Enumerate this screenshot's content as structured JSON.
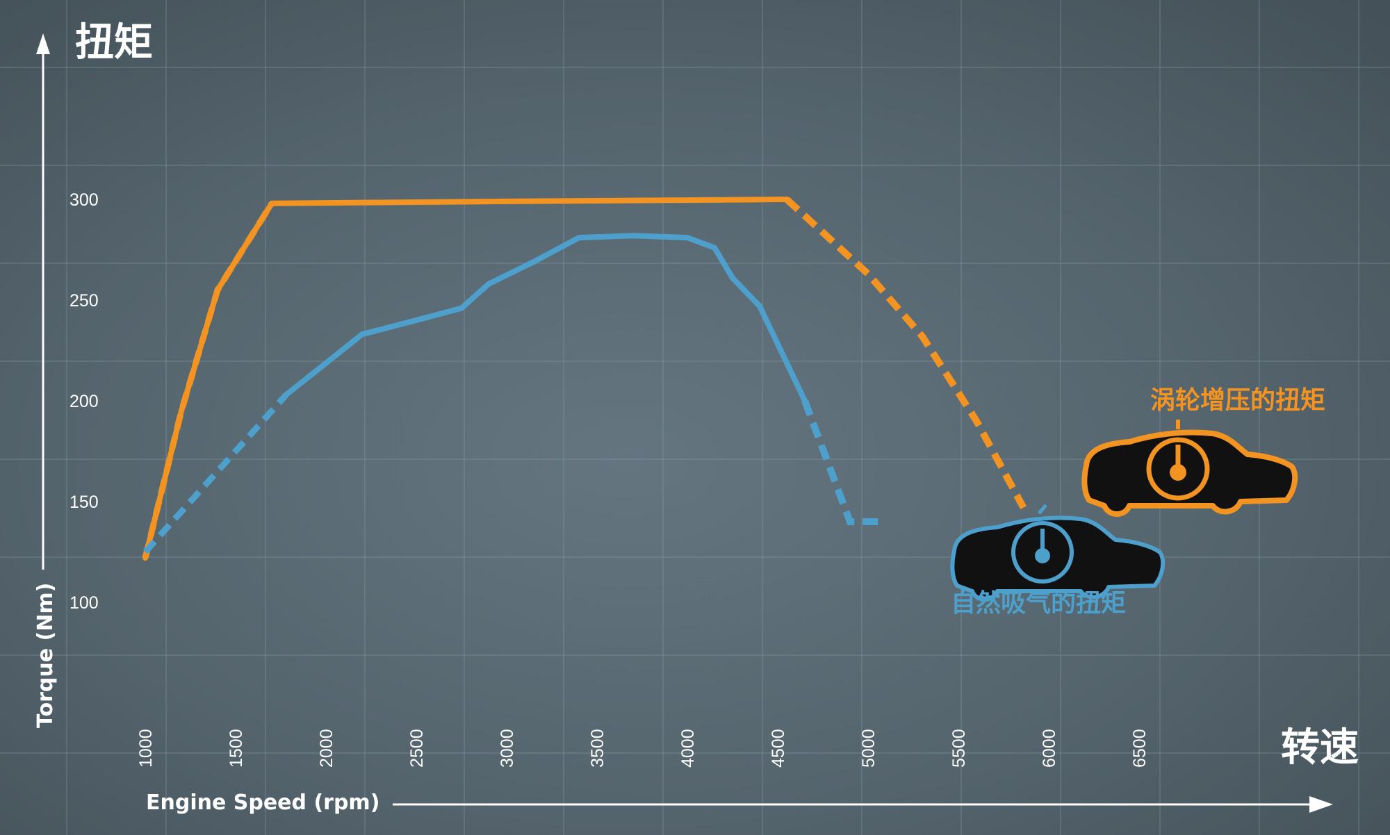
{
  "chart_data": {
    "type": "line",
    "y_axis_title": "扭矩",
    "ylabel": "Torque (Nm)",
    "x_axis_title": "转速",
    "xlabel": "Engine Speed (rpm)",
    "x_ticks": [
      1000,
      1500,
      2000,
      2500,
      3000,
      3500,
      4000,
      4500,
      5000,
      5500,
      6000,
      6500
    ],
    "y_ticks": [
      100,
      150,
      200,
      250,
      300
    ],
    "xlim": [
      750,
      6800
    ],
    "ylim": [
      40,
      390
    ],
    "grid": true,
    "series": [
      {
        "name": "涡轮增压的扭矩",
        "color": "#f39322",
        "points": [
          [
            1000,
            122
          ],
          [
            1200,
            195
          ],
          [
            1400,
            255
          ],
          [
            1700,
            298
          ],
          [
            3000,
            299
          ],
          [
            4550,
            300
          ]
        ],
        "dashed_points": [
          [
            4550,
            300
          ],
          [
            5000,
            263
          ],
          [
            5300,
            232
          ],
          [
            5600,
            190
          ],
          [
            5860,
            147
          ]
        ],
        "dashed_start_points": [
          [
            1000,
            122
          ],
          [
            1200,
            195
          ],
          [
            1400,
            255
          ],
          [
            1700,
            298
          ]
        ]
      },
      {
        "name": "自然吸气的扭矩",
        "color": "#4ea0cc",
        "points": [
          [
            1780,
            203
          ],
          [
            2200,
            233
          ],
          [
            2500,
            240
          ],
          [
            2750,
            246
          ],
          [
            2900,
            258
          ],
          [
            3150,
            269
          ],
          [
            3400,
            281
          ],
          [
            3700,
            282
          ],
          [
            4000,
            281
          ],
          [
            4150,
            276
          ],
          [
            4250,
            261
          ],
          [
            4400,
            247
          ],
          [
            4650,
            200
          ]
        ],
        "dashed_points": [
          [
            4650,
            200
          ],
          [
            4900,
            140
          ],
          [
            5100,
            140
          ]
        ],
        "dashed_start_points": [
          [
            1000,
            125
          ],
          [
            1300,
            155
          ],
          [
            1780,
            203
          ]
        ]
      }
    ],
    "legend": [
      {
        "label": "涡轮增压的扭矩",
        "color": "#f39322"
      },
      {
        "label": "自然吸气的扭矩",
        "color": "#4ea0cc"
      }
    ]
  }
}
